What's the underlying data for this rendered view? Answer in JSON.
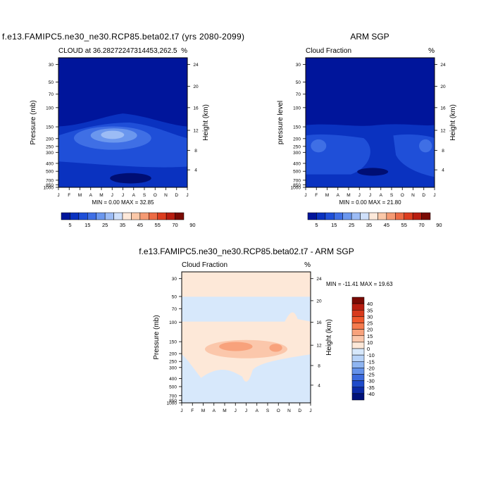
{
  "chart_data": [
    {
      "type": "contour",
      "title": "f.e13.FAMIPC5.ne30_ne30.RCP85.beta02.t7 (yrs 2080-2099)",
      "left_label": "CLOUD at 36.28272247314453,262.5",
      "right_label": "%",
      "ylabel": "Pressure (mb)",
      "ylabel_right": "Height (km)",
      "months": [
        "J",
        "F",
        "M",
        "A",
        "M",
        "J",
        "J",
        "A",
        "S",
        "O",
        "N",
        "D",
        "J"
      ],
      "pressure_ticks": [
        "30",
        "50",
        "70",
        "100",
        "150",
        "200",
        "250",
        "300",
        "400",
        "500",
        "700",
        "850",
        "1000"
      ],
      "height_ticks": [
        "24",
        "20",
        "16",
        "12",
        "8",
        "4"
      ],
      "min_max_text": "MIN =   0.00 MAX =  32.85",
      "colorbar": {
        "labels": [
          "5",
          "15",
          "25",
          "35",
          "45",
          "55",
          "70",
          "90"
        ],
        "colors": [
          "#00159b",
          "#0a32c0",
          "#1f4fd8",
          "#3f6fe5",
          "#6b97ee",
          "#9cbcf5",
          "#cfe0fb",
          "#fde9da",
          "#fbc8a8",
          "#f59a73",
          "#ec6b44",
          "#dc3d1f",
          "#b81d10",
          "#7a0a04"
        ]
      }
    },
    {
      "type": "contour",
      "title": "ARM SGP",
      "left_label": "Cloud Fraction",
      "right_label": "%",
      "ylabel": "pressure level",
      "ylabel_right": "Height (km)",
      "months": [
        "J",
        "F",
        "M",
        "A",
        "M",
        "J",
        "J",
        "A",
        "S",
        "O",
        "N",
        "D",
        "J"
      ],
      "pressure_ticks": [
        "30",
        "50",
        "70",
        "100",
        "150",
        "200",
        "250",
        "300",
        "400",
        "500",
        "700",
        "850",
        "1000"
      ],
      "height_ticks": [
        "24",
        "20",
        "16",
        "12",
        "8",
        "4"
      ],
      "min_max_text": "MIN =   0.00 MAX =  21.80",
      "colorbar": {
        "labels": [
          "5",
          "15",
          "25",
          "35",
          "45",
          "55",
          "70",
          "90"
        ],
        "colors": [
          "#00159b",
          "#0a32c0",
          "#1f4fd8",
          "#3f6fe5",
          "#6b97ee",
          "#9cbcf5",
          "#cfe0fb",
          "#fde9da",
          "#fbc8a8",
          "#f59a73",
          "#ec6b44",
          "#dc3d1f",
          "#b81d10",
          "#7a0a04"
        ]
      }
    },
    {
      "type": "contour",
      "title": "f.e13.FAMIPC5.ne30_ne30.RCP85.beta02.t7 - ARM SGP",
      "left_label": "Cloud Fraction",
      "right_label": "%",
      "ylabel": "Pressure (mb)",
      "ylabel_right": "Height (km)",
      "months": [
        "J",
        "F",
        "M",
        "A",
        "M",
        "J",
        "J",
        "A",
        "S",
        "O",
        "N",
        "D",
        "J"
      ],
      "pressure_ticks": [
        "30",
        "50",
        "70",
        "100",
        "150",
        "200",
        "250",
        "300",
        "400",
        "500",
        "700",
        "850",
        "1000"
      ],
      "height_ticks": [
        "24",
        "20",
        "16",
        "12",
        "8",
        "4"
      ],
      "min_max_text": "MIN = -11.41 MAX =  19.63",
      "colorbar": {
        "labels": [
          "40",
          "35",
          "30",
          "25",
          "20",
          "15",
          "10",
          "0",
          "-10",
          "-15",
          "-20",
          "-25",
          "-30",
          "-35",
          "-40"
        ],
        "colors": [
          "#7a0a04",
          "#b81d10",
          "#d83a1c",
          "#f0582c",
          "#f57b4e",
          "#f8a27c",
          "#fbc7ab",
          "#fde8d8",
          "#d7e8fb",
          "#b8d3f8",
          "#8fb5f1",
          "#6592ea",
          "#3c6bdd",
          "#1f4bca",
          "#0b2aa6",
          "#00127a"
        ]
      }
    }
  ]
}
